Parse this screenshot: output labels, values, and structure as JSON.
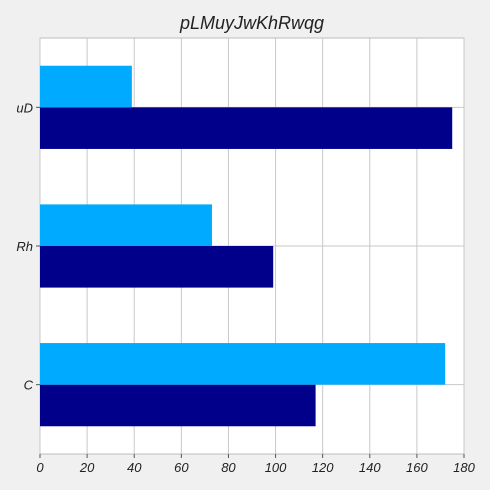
{
  "chart_data": {
    "type": "bar",
    "orientation": "horizontal",
    "title": "pLMuyJwKhRwqg",
    "xlabel": "",
    "ylabel": "",
    "categories": [
      "C",
      "Rh",
      "uD"
    ],
    "series": [
      {
        "color": "#00008b",
        "values": [
          117,
          99,
          175
        ]
      },
      {
        "color": "#00aaff",
        "values": [
          172,
          73,
          39
        ]
      }
    ],
    "xlim": [
      0,
      180
    ],
    "xticks": [
      0,
      20,
      40,
      60,
      80,
      100,
      120,
      140,
      160,
      180
    ],
    "grid": true,
    "legend": "none"
  }
}
